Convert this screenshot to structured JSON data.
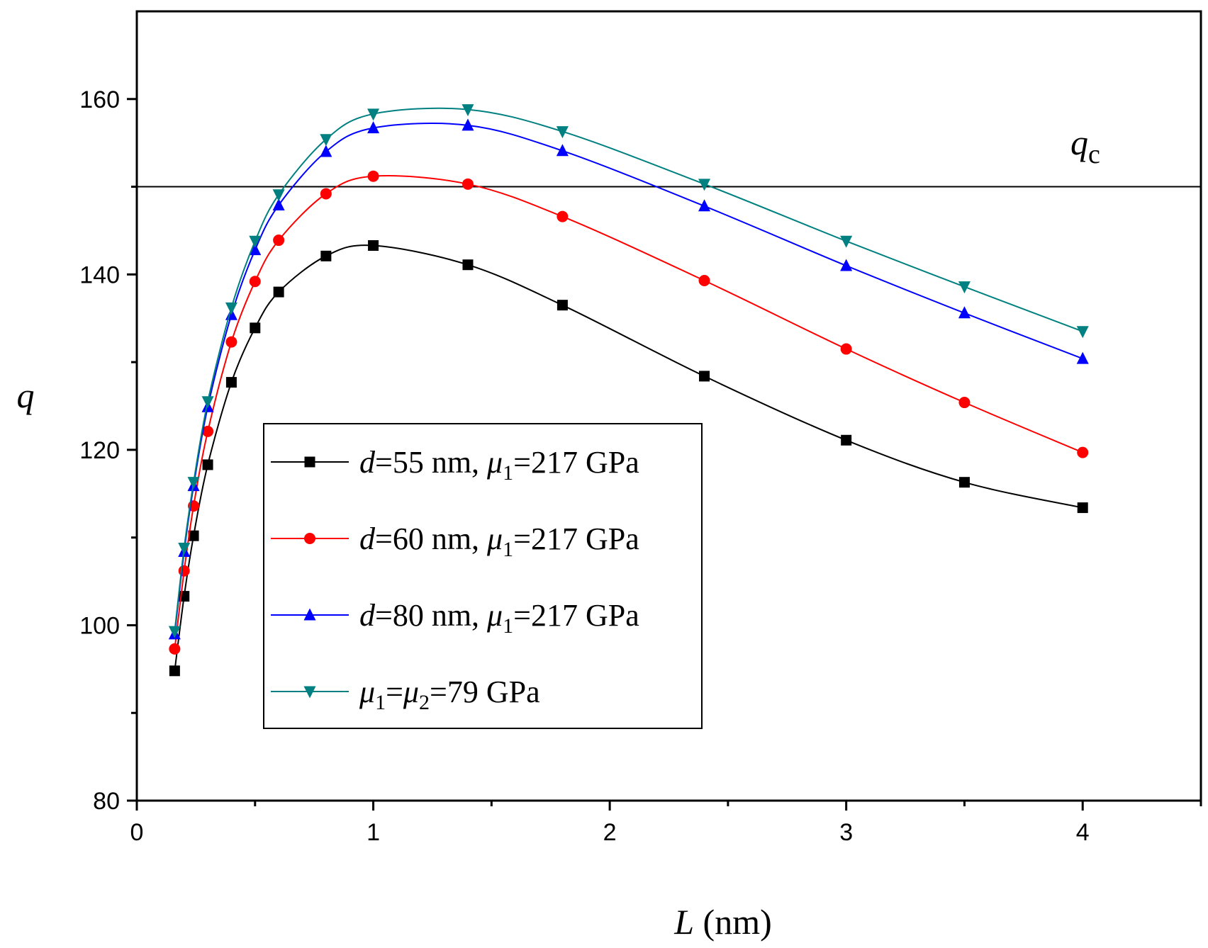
{
  "chart_data": {
    "type": "line",
    "xlabel": "L (nm)",
    "xlabel_var": "L",
    "xlabel_unit": " (nm)",
    "ylabel": "q",
    "xlim": [
      0,
      4.5
    ],
    "ylim": [
      80,
      170
    ],
    "xticks": [
      0,
      1,
      2,
      3,
      4
    ],
    "xticks_minor": [
      0.5,
      1.5,
      2.5,
      3.5,
      4.5
    ],
    "yticks": [
      80,
      100,
      120,
      140,
      160
    ],
    "yticks_minor": [
      90,
      110,
      130,
      150
    ],
    "grid": false,
    "legend_position": "center-left",
    "reference_line": {
      "y": 150,
      "label": "q",
      "label_sub": "c"
    },
    "series": [
      {
        "name": "d=55 nm, μ1=217 GPa",
        "legend": {
          "var": "d",
          "rest": "=55 nm, ",
          "mu": "μ",
          "mu_sub": "1",
          "tail": "=217 GPa"
        },
        "color": "#000000",
        "marker": "square",
        "x": [
          0.16,
          0.2,
          0.24,
          0.3,
          0.4,
          0.5,
          0.6,
          0.8,
          1.0,
          1.4,
          1.8,
          2.4,
          3.0,
          3.5,
          4.0
        ],
        "y": [
          94.8,
          103.3,
          110.2,
          118.3,
          127.7,
          133.9,
          138.0,
          142.1,
          143.3,
          141.1,
          136.5,
          128.4,
          121.1,
          116.3,
          113.4
        ]
      },
      {
        "name": "d=60 nm, μ1=217 GPa",
        "legend": {
          "var": "d",
          "rest": "=60 nm, ",
          "mu": "μ",
          "mu_sub": "1",
          "tail": "=217 GPa"
        },
        "color": "#ff0000",
        "marker": "circle",
        "x": [
          0.16,
          0.2,
          0.24,
          0.3,
          0.4,
          0.5,
          0.6,
          0.8,
          1.0,
          1.4,
          1.8,
          2.4,
          3.0,
          3.5,
          4.0
        ],
        "y": [
          97.3,
          106.2,
          113.6,
          122.1,
          132.3,
          139.2,
          143.9,
          149.2,
          151.2,
          150.3,
          146.6,
          139.3,
          131.5,
          125.4,
          119.7
        ]
      },
      {
        "name": "d=80 nm, μ1=217 GPa",
        "legend": {
          "var": "d",
          "rest": "=80 nm, ",
          "mu": "μ",
          "mu_sub": "1",
          "tail": "=217 GPa"
        },
        "color": "#0000ff",
        "marker": "triangle-up",
        "x": [
          0.16,
          0.2,
          0.24,
          0.3,
          0.4,
          0.5,
          0.6,
          0.8,
          1.0,
          1.4,
          1.8,
          2.4,
          3.0,
          3.5,
          4.0
        ],
        "y": [
          99.0,
          108.4,
          115.9,
          124.9,
          135.4,
          142.8,
          147.9,
          154.0,
          156.7,
          157.0,
          154.1,
          147.8,
          141.0,
          135.6,
          130.4
        ]
      },
      {
        "name": "μ1=μ2=79 GPa",
        "legend": {
          "var": "",
          "rest": "",
          "mu": "μ",
          "mu_sub": "1",
          "tail": "=",
          "mu2": "μ",
          "mu2_sub": "2",
          "tail2": "=79 GPa"
        },
        "color": "#008080",
        "marker": "triangle-down",
        "x": [
          0.16,
          0.2,
          0.24,
          0.3,
          0.4,
          0.5,
          0.6,
          0.8,
          1.0,
          1.4,
          1.8,
          2.4,
          3.0,
          3.5,
          4.0
        ],
        "y": [
          99.3,
          108.8,
          116.3,
          125.5,
          136.2,
          143.8,
          149.1,
          155.4,
          158.3,
          158.8,
          156.3,
          150.3,
          143.8,
          138.6,
          133.5
        ]
      }
    ]
  }
}
